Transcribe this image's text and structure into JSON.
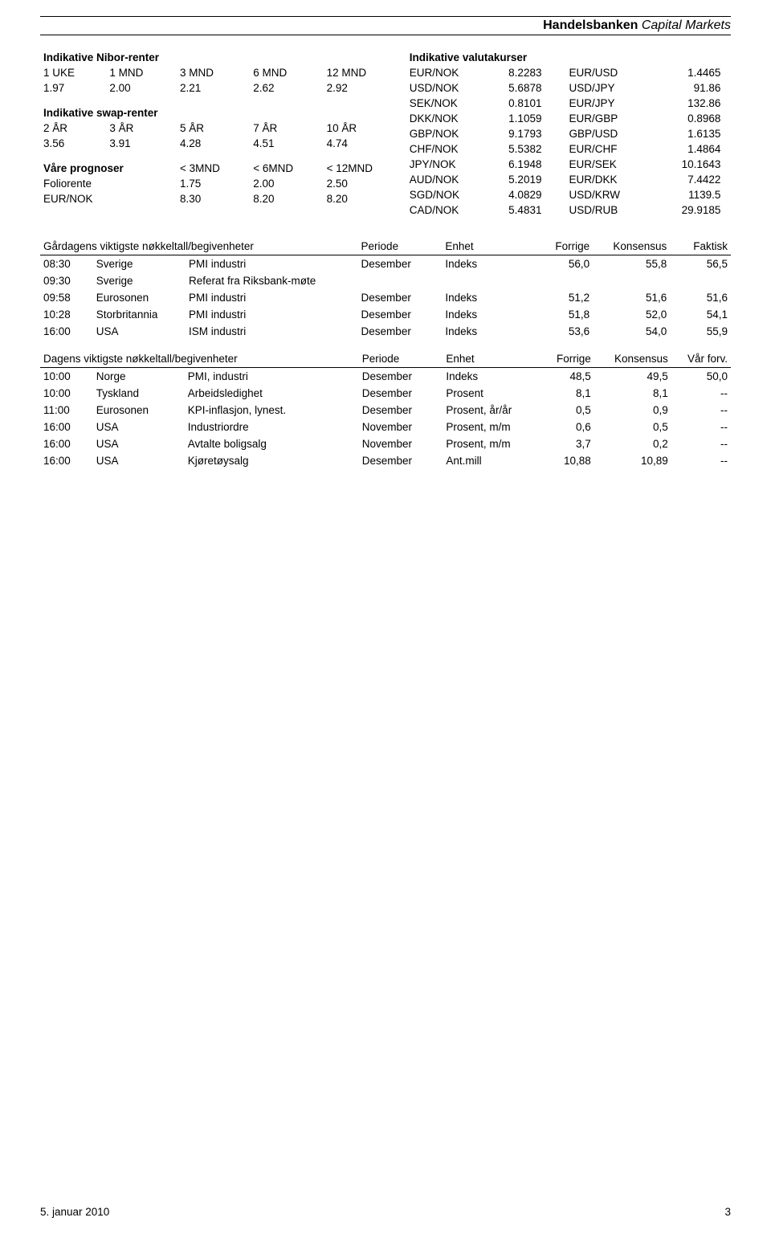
{
  "header": {
    "bold": "Handelsbanken",
    "light": "Capital Markets"
  },
  "nibor": {
    "title": "Indikative Nibor-renter",
    "headers": [
      "1 UKE",
      "1 MND",
      "3 MND",
      "6 MND",
      "12 MND"
    ],
    "values": [
      "1.97",
      "2.00",
      "2.21",
      "2.62",
      "2.92"
    ]
  },
  "swap": {
    "title": "Indikative swap-renter",
    "headers": [
      "2 ÅR",
      "3 ÅR",
      "5 ÅR",
      "7 ÅR",
      "10 ÅR"
    ],
    "values": [
      "3.56",
      "3.91",
      "4.28",
      "4.51",
      "4.74"
    ]
  },
  "prognoser": {
    "title": "Våre prognoser",
    "headers": [
      "< 3MND",
      "< 6MND",
      "< 12MND"
    ],
    "rows": [
      {
        "label": "Foliorente",
        "v": [
          "1.75",
          "2.00",
          "2.50"
        ]
      },
      {
        "label": "EUR/NOK",
        "v": [
          "8.30",
          "8.20",
          "8.20"
        ]
      }
    ]
  },
  "fx": {
    "title": "Indikative valutakurser",
    "rows": [
      [
        "EUR/NOK",
        "8.2283",
        "EUR/USD",
        "1.4465"
      ],
      [
        "USD/NOK",
        "5.6878",
        "USD/JPY",
        "91.86"
      ],
      [
        "SEK/NOK",
        "0.8101",
        "EUR/JPY",
        "132.86"
      ],
      [
        "DKK/NOK",
        "1.1059",
        "EUR/GBP",
        "0.8968"
      ],
      [
        "GBP/NOK",
        "9.1793",
        "GBP/USD",
        "1.6135"
      ],
      [
        "CHF/NOK",
        "5.5382",
        "EUR/CHF",
        "1.4864"
      ],
      [
        "JPY/NOK",
        "6.1948",
        "EUR/SEK",
        "10.1643"
      ],
      [
        "AUD/NOK",
        "5.2019",
        "EUR/DKK",
        "7.4422"
      ],
      [
        "SGD/NOK",
        "4.0829",
        "USD/KRW",
        "1139.5"
      ],
      [
        "CAD/NOK",
        "5.4831",
        "USD/RUB",
        "29.9185"
      ]
    ]
  },
  "events_yesterday": {
    "title": "Gårdagens viktigste nøkkeltall/begivenheter",
    "cols": [
      "Periode",
      "Enhet",
      "Forrige",
      "Konsensus",
      "Faktisk"
    ],
    "rows": [
      [
        "08:30",
        "Sverige",
        "PMI industri",
        "Desember",
        "Indeks",
        "56,0",
        "55,8",
        "56,5"
      ],
      [
        "09:30",
        "Sverige",
        "Referat fra Riksbank-møte",
        "",
        "",
        "",
        "",
        ""
      ],
      [
        "09:58",
        "Eurosonen",
        "PMI industri",
        "Desember",
        "Indeks",
        "51,2",
        "51,6",
        "51,6"
      ],
      [
        "10:28",
        "Storbritannia",
        "PMI industri",
        "Desember",
        "Indeks",
        "51,8",
        "52,0",
        "54,1"
      ],
      [
        "16:00",
        "USA",
        "ISM industri",
        "Desember",
        "Indeks",
        "53,6",
        "54,0",
        "55,9"
      ]
    ]
  },
  "events_today": {
    "title": "Dagens viktigste nøkkeltall/begivenheter",
    "cols": [
      "Periode",
      "Enhet",
      "Forrige",
      "Konsensus",
      "Vår forv."
    ],
    "rows": [
      [
        "10:00",
        "Norge",
        "PMI, industri",
        "Desember",
        "Indeks",
        "48,5",
        "49,5",
        "50,0"
      ],
      [
        "10:00",
        "Tyskland",
        "Arbeidsledighet",
        "Desember",
        "Prosent",
        "8,1",
        "8,1",
        "--"
      ],
      [
        "11:00",
        "Eurosonen",
        "KPI-inflasjon, lynest.",
        "Desember",
        "Prosent, år/år",
        "0,5",
        "0,9",
        "--"
      ],
      [
        "16:00",
        "USA",
        "Industriordre",
        "November",
        "Prosent, m/m",
        "0,6",
        "0,5",
        "--"
      ],
      [
        "16:00",
        "USA",
        "Avtalte boligsalg",
        "November",
        "Prosent, m/m",
        "3,7",
        "0,2",
        "--"
      ],
      [
        "16:00",
        "USA",
        "Kjøretøysalg",
        "Desember",
        "Ant.mill",
        "10,88",
        "10,89",
        "--"
      ]
    ]
  },
  "footer": {
    "date": "5. januar 2010",
    "page": "3"
  }
}
